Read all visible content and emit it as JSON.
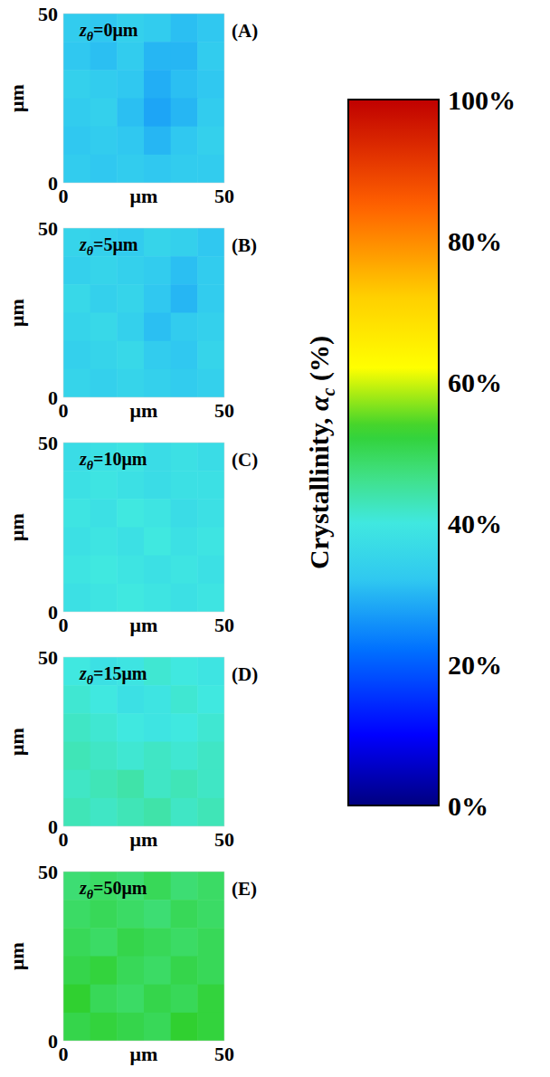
{
  "chart_data": [
    {
      "type": "heatmap",
      "title": "zθ=0μm",
      "label": "(A)",
      "xlabel": "μm",
      "ylabel": "μm",
      "xlim": [
        0,
        50
      ],
      "ylim": [
        0,
        50
      ],
      "xticks": [
        0,
        50
      ],
      "yticks": [
        0,
        50
      ],
      "cells": [
        [
          33,
          32,
          34,
          33,
          31,
          32
        ],
        [
          32,
          31,
          33,
          30,
          30,
          33
        ],
        [
          34,
          33,
          32,
          29,
          31,
          32
        ],
        [
          33,
          34,
          31,
          28,
          30,
          33
        ],
        [
          32,
          33,
          32,
          30,
          32,
          34
        ],
        [
          33,
          32,
          33,
          32,
          33,
          33
        ]
      ]
    },
    {
      "type": "heatmap",
      "title": "zθ=5μm",
      "label": "(B)",
      "xlabel": "μm",
      "ylabel": "μm",
      "xlim": [
        0,
        50
      ],
      "ylim": [
        0,
        50
      ],
      "xticks": [
        0,
        50
      ],
      "yticks": [
        0,
        50
      ],
      "cells": [
        [
          35,
          34,
          33,
          35,
          34,
          32
        ],
        [
          34,
          35,
          34,
          33,
          31,
          33
        ],
        [
          36,
          34,
          35,
          32,
          30,
          33
        ],
        [
          35,
          36,
          34,
          31,
          33,
          34
        ],
        [
          34,
          35,
          36,
          33,
          32,
          35
        ],
        [
          35,
          34,
          35,
          34,
          33,
          34
        ]
      ]
    },
    {
      "type": "heatmap",
      "title": "zθ=10μm",
      "label": "(C)",
      "xlabel": "μm",
      "ylabel": "μm",
      "xlim": [
        0,
        50
      ],
      "ylim": [
        0,
        50
      ],
      "xticks": [
        0,
        50
      ],
      "yticks": [
        0,
        50
      ],
      "cells": [
        [
          37,
          38,
          39,
          37,
          38,
          37
        ],
        [
          38,
          39,
          38,
          37,
          38,
          38
        ],
        [
          39,
          38,
          40,
          39,
          37,
          38
        ],
        [
          38,
          39,
          38,
          40,
          38,
          39
        ],
        [
          39,
          40,
          39,
          38,
          39,
          38
        ],
        [
          38,
          39,
          40,
          39,
          38,
          39
        ]
      ]
    },
    {
      "type": "heatmap",
      "title": "zθ=15μm",
      "label": "(D)",
      "xlabel": "μm",
      "ylabel": "μm",
      "xlim": [
        0,
        50
      ],
      "ylim": [
        0,
        50
      ],
      "xticks": [
        0,
        50
      ],
      "yticks": [
        0,
        50
      ],
      "cells": [
        [
          40,
          38,
          39,
          41,
          40,
          39
        ],
        [
          41,
          40,
          38,
          39,
          41,
          40
        ],
        [
          42,
          41,
          40,
          39,
          40,
          41
        ],
        [
          43,
          42,
          41,
          42,
          41,
          42
        ],
        [
          42,
          43,
          44,
          42,
          43,
          42
        ],
        [
          43,
          42,
          43,
          44,
          42,
          43
        ]
      ]
    },
    {
      "type": "heatmap",
      "title": "zθ=50μm",
      "label": "(E)",
      "xlabel": "μm",
      "ylabel": "μm",
      "xlim": [
        0,
        50
      ],
      "ylim": [
        0,
        50
      ],
      "xticks": [
        0,
        50
      ],
      "yticks": [
        0,
        50
      ],
      "cells": [
        [
          48,
          49,
          48,
          50,
          48,
          49
        ],
        [
          49,
          50,
          49,
          48,
          50,
          49
        ],
        [
          50,
          49,
          51,
          50,
          49,
          50
        ],
        [
          51,
          52,
          50,
          49,
          51,
          50
        ],
        [
          53,
          50,
          49,
          51,
          50,
          52
        ],
        [
          51,
          52,
          51,
          50,
          53,
          52
        ]
      ]
    }
  ],
  "colorbar": {
    "label": "Crystallinity, αc (%)",
    "range": [
      0,
      100
    ],
    "ticks": [
      {
        "value": 0,
        "label": "0%"
      },
      {
        "value": 20,
        "label": "20%"
      },
      {
        "value": 40,
        "label": "40%"
      },
      {
        "value": 60,
        "label": "60%"
      },
      {
        "value": 80,
        "label": "80%"
      },
      {
        "value": 100,
        "label": "100%"
      }
    ]
  }
}
